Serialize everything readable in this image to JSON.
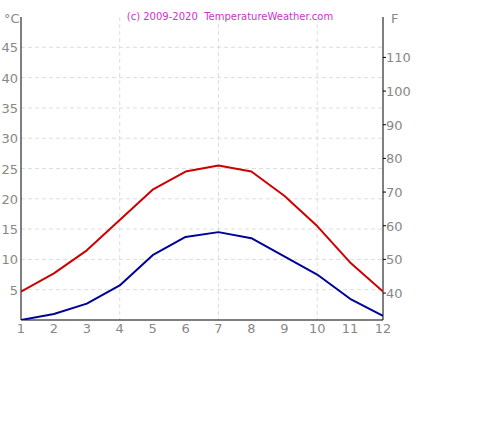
{
  "chart_data": {
    "type": "line",
    "title": "(c) 2009-2020  TemperatureWeather.com",
    "y_label": "°C",
    "y2_label": "F",
    "x": [
      1,
      2,
      3,
      4,
      5,
      6,
      7,
      8,
      9,
      10,
      11,
      12
    ],
    "xlim": [
      1,
      12
    ],
    "xticks": [
      1,
      2,
      3,
      4,
      5,
      6,
      7,
      8,
      9,
      10,
      11,
      12
    ],
    "ylim": [
      0,
      50
    ],
    "yticks": [
      5,
      10,
      15,
      20,
      25,
      30,
      35,
      40,
      45
    ],
    "y2lim": [
      32,
      122
    ],
    "y2ticks": [
      40,
      50,
      60,
      70,
      80,
      90,
      100,
      110
    ],
    "grid": true,
    "series": [
      {
        "color": "#cc0000",
        "values": [
          4.7,
          7.7,
          11.5,
          16.5,
          21.5,
          24.5,
          25.5,
          24.5,
          20.5,
          15.5,
          9.5,
          4.7
        ]
      },
      {
        "color": "#000099",
        "values": [
          0,
          1,
          2.7,
          5.7,
          10.7,
          13.7,
          14.5,
          13.5,
          10.5,
          7.5,
          3.5,
          0.7
        ]
      }
    ]
  }
}
